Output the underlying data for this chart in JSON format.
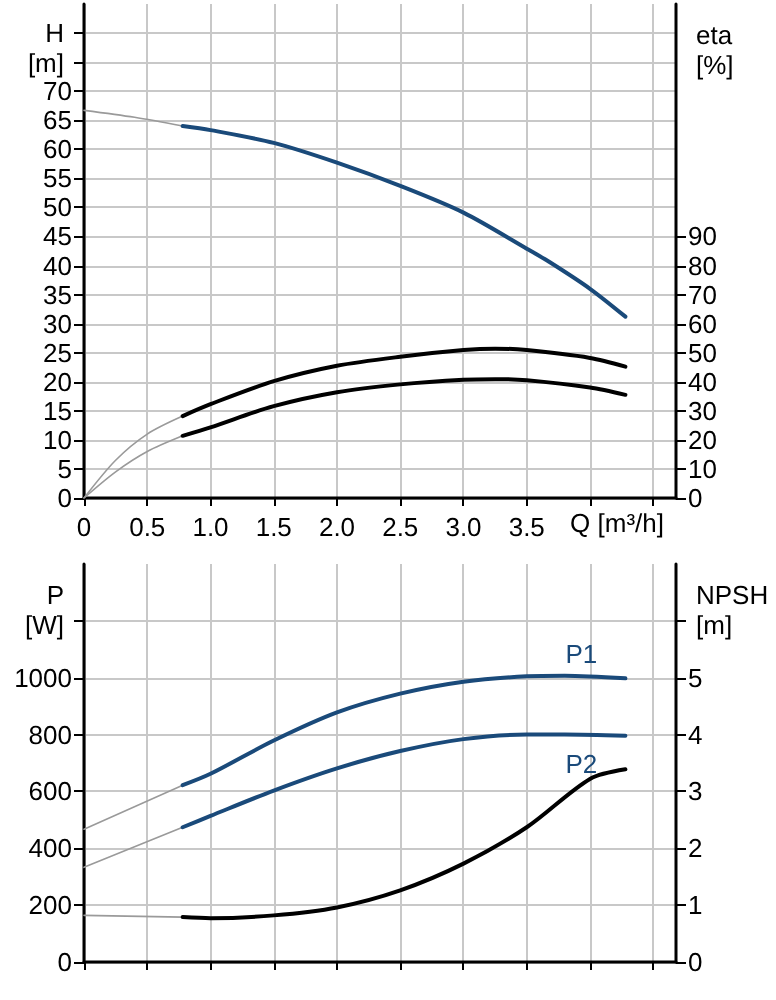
{
  "chart_data": [
    {
      "type": "line",
      "xlabel": "Q [m³/h]",
      "ylabel": "H [m]",
      "y2label": "eta [%]",
      "xlim": [
        0,
        4.68
      ],
      "xticks": [
        0,
        0.5,
        {
          "value": 1,
          "label": "1.0"
        },
        1.5,
        {
          "value": 2,
          "label": "2.0"
        },
        2.5,
        {
          "value": 3,
          "label": "3.0"
        },
        3.5,
        {
          "value": 4,
          "label": null
        },
        {
          "value": 4.5,
          "label": null
        }
      ],
      "ylim": [
        0,
        85
      ],
      "yticks": [
        0,
        5,
        10,
        15,
        20,
        25,
        30,
        35,
        40,
        45,
        50,
        55,
        60,
        65,
        70,
        {
          "value": 75,
          "label": null
        },
        {
          "value": 80,
          "label": null
        }
      ],
      "y2lim": [
        0,
        170
      ],
      "y2ticks": [
        0,
        10,
        20,
        30,
        40,
        50,
        60,
        70,
        80,
        90
      ],
      "grid": true,
      "legend": false,
      "marker": "none",
      "line_style": "solid",
      "series": [
        {
          "color": "#1a4a7a",
          "x": [
            0.78,
            1.0,
            1.5,
            2.0,
            2.5,
            3.0,
            3.5,
            3.68,
            4.0,
            4.28
          ],
          "values": [
            64.0,
            63.3,
            61.1,
            57.7,
            53.7,
            49.1,
            42.9,
            40.6,
            36.0,
            31.2
          ]
        },
        {
          "color": "#000000",
          "axis": "y2",
          "x": [
            0.78,
            1.0,
            1.5,
            2.0,
            2.5,
            3.0,
            3.25,
            3.5,
            4.0,
            4.28
          ],
          "values": [
            28.2,
            32.3,
            40.2,
            45.5,
            48.6,
            50.9,
            51.4,
            50.9,
            48.2,
            45.2
          ]
        },
        {
          "color": "#000000",
          "axis": "y2",
          "x": [
            0.78,
            1.0,
            1.5,
            2.0,
            2.5,
            3.0,
            3.25,
            3.5,
            4.0,
            4.28
          ],
          "values": [
            21.4,
            24.3,
            31.6,
            36.4,
            39.1,
            40.7,
            40.9,
            40.5,
            38.0,
            35.5
          ]
        },
        {
          "color": "#9a9a9a",
          "x": [
            0,
            0.4,
            0.78
          ],
          "values": [
            66.7,
            65.5,
            64.0
          ]
        },
        {
          "color": "#9a9a9a",
          "axis": "y2",
          "x": [
            0,
            0.25,
            0.5,
            0.78
          ],
          "values": [
            0,
            13,
            22,
            28.2
          ]
        },
        {
          "color": "#9a9a9a",
          "axis": "y2",
          "x": [
            0,
            0.25,
            0.5,
            0.78
          ],
          "values": [
            0,
            9,
            16,
            21.4
          ]
        }
      ]
    },
    {
      "type": "line",
      "ylabel": "P [W]",
      "y2label": "NPSH [m]",
      "tick_labels": "y",
      "xlim": [
        0,
        4.68
      ],
      "xticks": [
        0,
        0.5,
        1.0,
        1.5,
        2.0,
        2.5,
        3.0,
        3.5,
        4.0,
        4.5
      ],
      "ylim": [
        0,
        1400
      ],
      "yticks": [
        0,
        200,
        400,
        600,
        800,
        1000,
        {
          "value": 1200,
          "label": null
        }
      ],
      "y2lim": [
        0,
        7
      ],
      "y2ticks": [
        0,
        1,
        2,
        3,
        4,
        5,
        {
          "value": 6,
          "label": null
        }
      ],
      "grid": true,
      "legend": false,
      "marker": "none",
      "line_style": "solid",
      "series": [
        {
          "name": "P1",
          "color": "#1a4a7a",
          "x": [
            0.78,
            1.0,
            1.5,
            2.0,
            2.5,
            3.0,
            3.5,
            3.8,
            4.28
          ],
          "values": [
            622,
            662,
            779,
            878,
            944,
            986,
            1005,
            1007,
            998
          ]
        },
        {
          "name": "P2",
          "color": "#1a4a7a",
          "x": [
            0.78,
            1.0,
            1.5,
            2.0,
            2.5,
            3.0,
            3.5,
            3.8,
            4.28
          ],
          "values": [
            474,
            514,
            603,
            681,
            742,
            784,
            800,
            800,
            796
          ]
        },
        {
          "color": "#000000",
          "axis": "y2",
          "x": [
            0.78,
            1.0,
            1.5,
            2.0,
            2.5,
            3.0,
            3.5,
            4.0,
            4.28
          ],
          "values": [
            0.79,
            0.77,
            0.82,
            0.96,
            1.26,
            1.73,
            2.37,
            3.22,
            3.39
          ]
        },
        {
          "color": "#9a9a9a",
          "x": [
            0,
            0.78
          ],
          "values": [
            467,
            622
          ]
        },
        {
          "color": "#9a9a9a",
          "x": [
            0,
            0.78
          ],
          "values": [
            333,
            474
          ]
        },
        {
          "color": "#9a9a9a",
          "axis": "y2",
          "x": [
            0,
            0.78
          ],
          "values": [
            0.82,
            0.79
          ]
        }
      ]
    }
  ]
}
